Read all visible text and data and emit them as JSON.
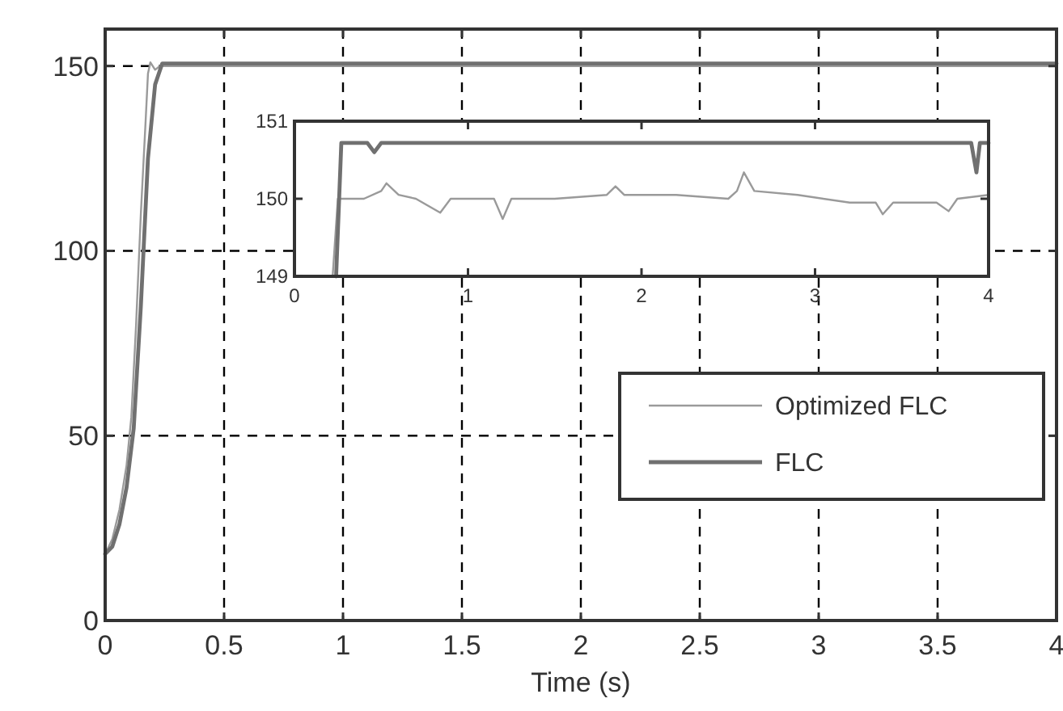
{
  "chart_data": [
    {
      "type": "line",
      "xlabel": "Time (s)",
      "xlim": [
        0,
        4
      ],
      "ylim": [
        0,
        160
      ],
      "xticks": [
        0,
        0.5,
        1,
        1.5,
        2,
        2.5,
        3,
        3.5,
        4
      ],
      "yticks": [
        0,
        50,
        100,
        150
      ],
      "grid": true,
      "legend": "right",
      "line_style": "solid",
      "series": [
        {
          "name": "Optimized FLC",
          "color": "#9a9a9a",
          "x": [
            0,
            0.03,
            0.06,
            0.09,
            0.11,
            0.13,
            0.15,
            0.17,
            0.18,
            0.19,
            0.21,
            0.23,
            4
          ],
          "values": [
            18,
            22,
            30,
            42,
            55,
            80,
            110,
            135,
            148,
            151,
            149,
            150,
            150
          ]
        },
        {
          "name": "FLC",
          "color": "#707070",
          "x": [
            0,
            0.03,
            0.06,
            0.09,
            0.12,
            0.15,
            0.18,
            0.21,
            0.24,
            4
          ],
          "values": [
            18,
            20,
            26,
            36,
            52,
            85,
            125,
            145,
            150.7,
            150.7
          ]
        }
      ]
    },
    {
      "type": "line",
      "xlim": [
        0,
        4
      ],
      "ylim": [
        149,
        151
      ],
      "xticks": [
        0,
        1,
        2,
        3,
        4
      ],
      "yticks": [
        149,
        150,
        151
      ],
      "grid": false,
      "legend": false,
      "line_style": "solid",
      "series": [
        {
          "color": "#9a9a9a",
          "x": [
            0.22,
            0.25,
            0.4,
            0.5,
            0.53,
            0.6,
            0.7,
            0.84,
            0.9,
            1.15,
            1.2,
            1.25,
            1.5,
            1.8,
            1.85,
            1.9,
            2.2,
            2.5,
            2.55,
            2.59,
            2.65,
            2.9,
            3.2,
            3.35,
            3.39,
            3.45,
            3.7,
            3.77,
            3.82,
            4
          ],
          "values": [
            149,
            150,
            150,
            150.1,
            150.2,
            150.05,
            150,
            149.82,
            150,
            150,
            149.74,
            150,
            150,
            150.05,
            150.16,
            150.05,
            150.05,
            150,
            150.1,
            150.34,
            150.1,
            150.05,
            149.95,
            149.95,
            149.8,
            149.95,
            149.95,
            149.84,
            150,
            150.05
          ]
        },
        {
          "color": "#707070",
          "x": [
            0.24,
            0.27,
            0.42,
            0.46,
            0.5,
            3.9,
            3.93,
            3.95,
            4
          ],
          "values": [
            149,
            150.72,
            150.72,
            150.6,
            150.72,
            150.72,
            150.34,
            150.72,
            150.72
          ]
        }
      ]
    }
  ]
}
